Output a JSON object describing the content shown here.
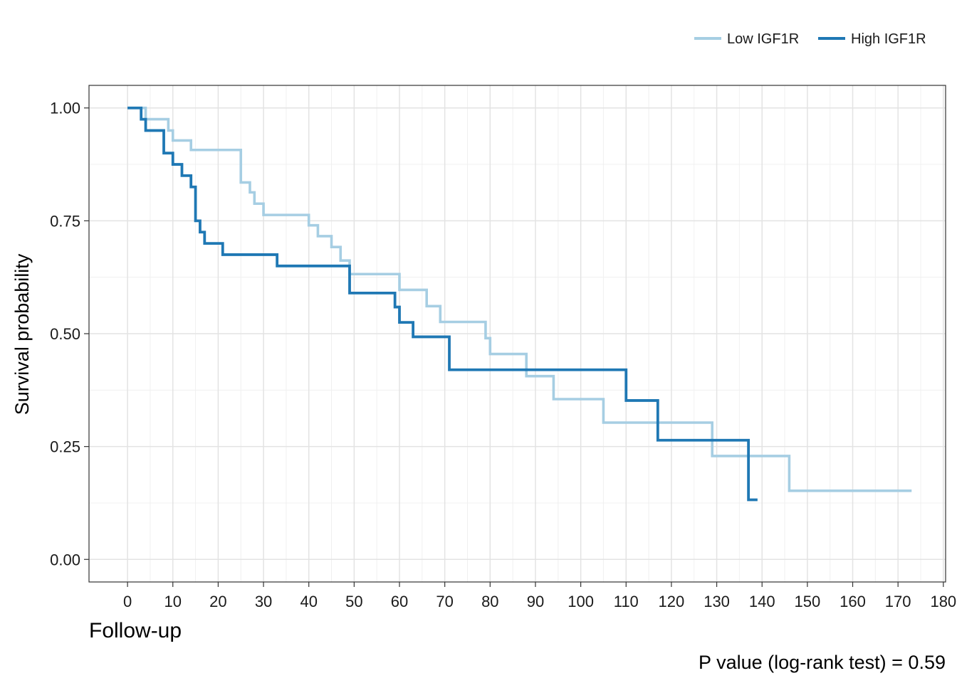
{
  "chart_data": {
    "type": "line",
    "step": true,
    "xlabel": "Follow-up",
    "ylabel": "Survival probability",
    "annotation": "P value (log-rank test) = 0.59",
    "xlim": [
      -8.5,
      180.5
    ],
    "ylim": [
      -0.05,
      1.05
    ],
    "x_ticks": [
      0,
      10,
      20,
      30,
      40,
      50,
      60,
      70,
      80,
      90,
      100,
      110,
      120,
      130,
      140,
      150,
      160,
      170,
      180
    ],
    "x_tick_labels": [
      "0",
      "10",
      "20",
      "30",
      "40",
      "50",
      "60",
      "70",
      "80",
      "90",
      "100",
      "110",
      "120",
      "130",
      "140",
      "150",
      "160",
      "170",
      "180"
    ],
    "y_ticks": [
      0,
      0.25,
      0.5,
      0.75,
      1.0
    ],
    "y_tick_labels": [
      "0.00",
      "0.25",
      "0.50",
      "0.75",
      "1.00"
    ],
    "grid": true,
    "legend_position": "top-right",
    "series": [
      {
        "name": "Low IGF1R",
        "color": "#a6cee3",
        "points": [
          [
            0,
            1.0
          ],
          [
            4,
            0.975
          ],
          [
            9,
            0.95
          ],
          [
            10,
            0.928
          ],
          [
            14,
            0.907
          ],
          [
            25,
            0.835
          ],
          [
            27,
            0.813
          ],
          [
            28,
            0.788
          ],
          [
            30,
            0.763
          ],
          [
            40,
            0.74
          ],
          [
            42,
            0.716
          ],
          [
            45,
            0.692
          ],
          [
            47,
            0.662
          ],
          [
            49,
            0.632
          ],
          [
            60,
            0.597
          ],
          [
            66,
            0.561
          ],
          [
            69,
            0.526
          ],
          [
            79,
            0.49
          ],
          [
            80,
            0.455
          ],
          [
            88,
            0.406
          ],
          [
            94,
            0.355
          ],
          [
            105,
            0.303
          ],
          [
            129,
            0.229
          ],
          [
            146,
            0.152
          ],
          [
            173,
            0.152
          ]
        ]
      },
      {
        "name": "High IGF1R",
        "color": "#1f78b4",
        "points": [
          [
            0,
            1.0
          ],
          [
            3,
            0.975
          ],
          [
            4,
            0.95
          ],
          [
            8,
            0.9
          ],
          [
            10,
            0.875
          ],
          [
            12,
            0.85
          ],
          [
            14,
            0.825
          ],
          [
            15,
            0.75
          ],
          [
            16,
            0.725
          ],
          [
            17,
            0.7
          ],
          [
            21,
            0.675
          ],
          [
            33,
            0.65
          ],
          [
            49,
            0.59
          ],
          [
            59,
            0.559
          ],
          [
            60,
            0.525
          ],
          [
            63,
            0.493
          ],
          [
            71,
            0.42
          ],
          [
            110,
            0.352
          ],
          [
            117,
            0.264
          ],
          [
            137,
            0.132
          ],
          [
            139,
            0.132
          ]
        ]
      }
    ]
  }
}
